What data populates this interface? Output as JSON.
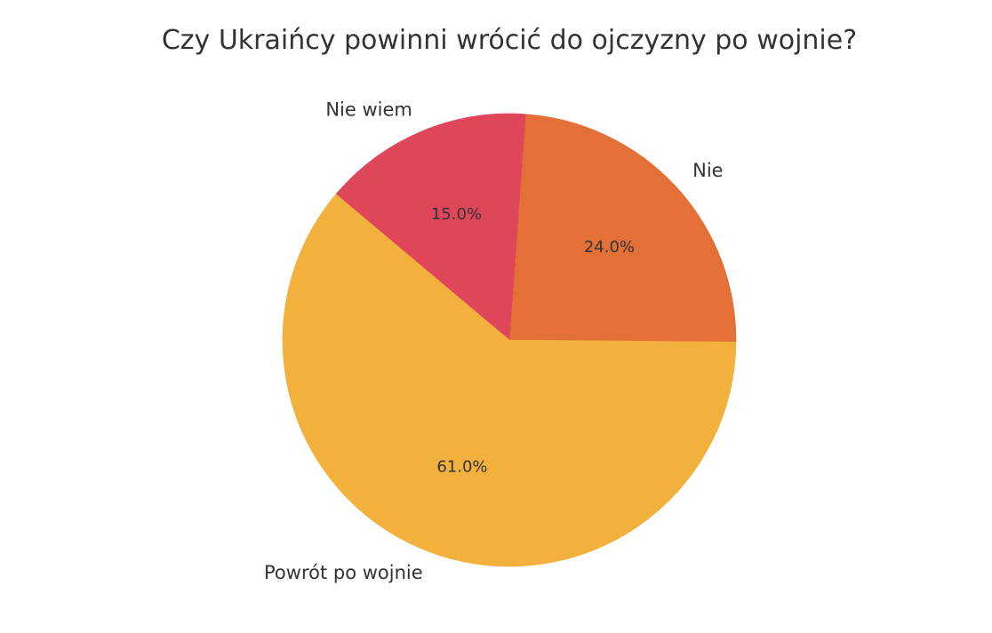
{
  "chart_data": {
    "type": "pie",
    "title": "Czy Ukraińcy powinni wrócić do ojczyzny po wojnie?",
    "slices": [
      {
        "label": "Nie",
        "value": 24.0,
        "pct_label": "24.0%",
        "color": "#E37037"
      },
      {
        "label": "Nie wiem",
        "value": 15.0,
        "pct_label": "15.0%",
        "color": "#E0465A"
      },
      {
        "label": "Powrót po wojnie",
        "value": 61.0,
        "pct_label": "61.0%",
        "color": "#F2B03D"
      }
    ],
    "start_angle_deg": -0.5,
    "direction": "counterclockwise"
  }
}
